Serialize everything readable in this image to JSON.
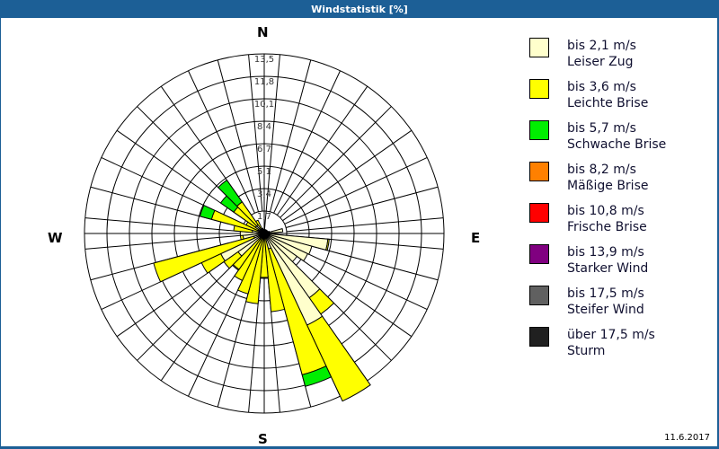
{
  "window": {
    "title": "Windstatistik [%]",
    "date": "11.6.2017"
  },
  "compass": {
    "N": "N",
    "E": "E",
    "S": "S",
    "W": "W"
  },
  "legend": [
    {
      "range": "bis 2,1 m/s",
      "name": "Leiser Zug",
      "color": "#ffffcc"
    },
    {
      "range": "bis 3,6 m/s",
      "name": "Leichte Brise",
      "color": "#ffff00"
    },
    {
      "range": "bis 5,7 m/s",
      "name": "Schwache Brise",
      "color": "#00ee00"
    },
    {
      "range": "bis 8,2 m/s",
      "name": "Mäßige Brise",
      "color": "#ff8000"
    },
    {
      "range": "bis 10,8 m/s",
      "name": "Frische Brise",
      "color": "#ff0000"
    },
    {
      "range": "bis 13,9 m/s",
      "name": "Starker Wind",
      "color": "#800080"
    },
    {
      "range": "bis 17,5 m/s",
      "name": "Steifer Wind",
      "color": "#606060"
    },
    {
      "range": "über 17,5 m/s",
      "name": "Sturm",
      "color": "#202020"
    }
  ],
  "chart_data": {
    "type": "wind-rose",
    "title": "Windstatistik [%]",
    "radial_ticks": [
      "1,7",
      "3,4",
      "5,1",
      "6,7",
      "8,4",
      "10,1",
      "11,8",
      "13,5"
    ],
    "radial_max": 13.5,
    "sector_width_deg": 10,
    "series_names": [
      "Leiser Zug",
      "Leichte Brise",
      "Schwache Brise"
    ],
    "sectors": [
      {
        "dir": 0,
        "values": [
          0.2,
          0.1,
          0
        ]
      },
      {
        "dir": 10,
        "values": [
          0.2,
          0,
          0
        ]
      },
      {
        "dir": 20,
        "values": [
          0.2,
          0,
          0
        ]
      },
      {
        "dir": 30,
        "values": [
          0.2,
          0,
          0
        ]
      },
      {
        "dir": 40,
        "values": [
          0.2,
          0,
          0
        ]
      },
      {
        "dir": 50,
        "values": [
          0.2,
          0,
          0
        ]
      },
      {
        "dir": 60,
        "values": [
          0.3,
          0,
          0
        ]
      },
      {
        "dir": 70,
        "values": [
          0.4,
          0,
          0
        ]
      },
      {
        "dir": 80,
        "values": [
          1.4,
          0,
          0
        ]
      },
      {
        "dir": 90,
        "values": [
          0.6,
          0,
          0
        ]
      },
      {
        "dir": 100,
        "values": [
          4.8,
          0.1,
          0
        ]
      },
      {
        "dir": 110,
        "values": [
          3.7,
          0,
          0
        ]
      },
      {
        "dir": 120,
        "values": [
          3.6,
          0,
          0
        ]
      },
      {
        "dir": 130,
        "values": [
          3.0,
          0,
          0
        ]
      },
      {
        "dir": 140,
        "values": [
          5.9,
          1.5,
          0
        ]
      },
      {
        "dir": 150,
        "values": [
          7.6,
          6.3,
          0
        ]
      },
      {
        "dir": 160,
        "values": [
          1.2,
          9.8,
          0.9
        ]
      },
      {
        "dir": 170,
        "values": [
          0.3,
          5.6,
          0
        ]
      },
      {
        "dir": 180,
        "values": [
          0.3,
          3.0,
          0
        ]
      },
      {
        "dir": 190,
        "values": [
          0.3,
          5.0,
          0
        ]
      },
      {
        "dir": 200,
        "values": [
          0.3,
          4.4,
          0
        ]
      },
      {
        "dir": 210,
        "values": [
          0.3,
          3.6,
          0
        ]
      },
      {
        "dir": 220,
        "values": [
          0.5,
          2.8,
          0
        ]
      },
      {
        "dir": 230,
        "values": [
          2.4,
          1.3,
          0
        ]
      },
      {
        "dir": 240,
        "values": [
          3.6,
          1.6,
          0
        ]
      },
      {
        "dir": 250,
        "values": [
          0.8,
          7.8,
          0
        ]
      },
      {
        "dir": 260,
        "values": [
          1.6,
          0.2,
          0
        ]
      },
      {
        "dir": 270,
        "values": [
          1.8,
          0,
          0
        ]
      },
      {
        "dir": 280,
        "values": [
          0.9,
          1.4,
          0
        ]
      },
      {
        "dir": 290,
        "values": [
          0.5,
          3.6,
          0.9
        ]
      },
      {
        "dir": 300,
        "values": [
          0.5,
          1.0,
          0
        ]
      },
      {
        "dir": 310,
        "values": [
          0.8,
          2.0,
          1.2
        ]
      },
      {
        "dir": 320,
        "values": [
          0.8,
          2.1,
          2.0
        ]
      },
      {
        "dir": 330,
        "values": [
          0.3,
          0.8,
          0
        ]
      },
      {
        "dir": 340,
        "values": [
          0.3,
          0.1,
          0
        ]
      },
      {
        "dir": 350,
        "values": [
          0.2,
          0.1,
          0
        ]
      }
    ]
  }
}
